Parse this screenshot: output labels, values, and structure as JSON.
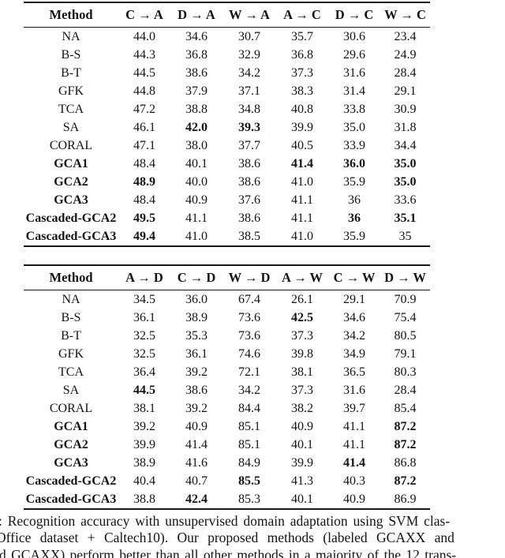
{
  "colors": {
    "background": "#ffffff",
    "text": "#131313",
    "rule": "#161616"
  },
  "table1": {
    "headers": [
      "Method",
      "C → A",
      "D → A",
      "W → A",
      "A → C",
      "D → C",
      "W → C"
    ],
    "rows": [
      {
        "method": "NA",
        "method_bold": false,
        "values": [
          "44.0",
          "34.6",
          "30.7",
          "35.7",
          "30.6",
          "23.4"
        ],
        "bold": [
          false,
          false,
          false,
          false,
          false,
          false
        ]
      },
      {
        "method": "B-S",
        "method_bold": false,
        "values": [
          "44.3",
          "36.8",
          "32.9",
          "36.8",
          "29.6",
          "24.9"
        ],
        "bold": [
          false,
          false,
          false,
          false,
          false,
          false
        ]
      },
      {
        "method": "B-T",
        "method_bold": false,
        "values": [
          "44.5",
          "38.6",
          "34.2",
          "37.3",
          "31.6",
          "28.4"
        ],
        "bold": [
          false,
          false,
          false,
          false,
          false,
          false
        ]
      },
      {
        "method": "GFK",
        "method_bold": false,
        "values": [
          "44.8",
          "37.9",
          "37.1",
          "38.3",
          "31.4",
          "29.1"
        ],
        "bold": [
          false,
          false,
          false,
          false,
          false,
          false
        ]
      },
      {
        "method": "TCA",
        "method_bold": false,
        "values": [
          "47.2",
          "38.8",
          "34.8",
          "40.8",
          "33.8",
          "30.9"
        ],
        "bold": [
          false,
          false,
          false,
          false,
          false,
          false
        ]
      },
      {
        "method": "SA",
        "method_bold": false,
        "values": [
          "46.1",
          "42.0",
          "39.3",
          "39.9",
          "35.0",
          "31.8"
        ],
        "bold": [
          false,
          true,
          true,
          false,
          false,
          false
        ]
      },
      {
        "method": "CORAL",
        "method_bold": false,
        "values": [
          "47.1",
          "38.0",
          "37.7",
          "40.5",
          "33.9",
          "34.4"
        ],
        "bold": [
          false,
          false,
          false,
          false,
          false,
          false
        ]
      },
      {
        "method": "GCA1",
        "method_bold": true,
        "values": [
          "48.4",
          "40.1",
          "38.6",
          "41.4",
          "36.0",
          "35.0"
        ],
        "bold": [
          false,
          false,
          false,
          true,
          true,
          true
        ]
      },
      {
        "method": "GCA2",
        "method_bold": true,
        "values": [
          "48.9",
          "40.0",
          "38.6",
          "41.0",
          "35.9",
          "35.0"
        ],
        "bold": [
          true,
          false,
          false,
          false,
          false,
          true
        ]
      },
      {
        "method": "GCA3",
        "method_bold": true,
        "values": [
          "48.4",
          "40.9",
          "37.6",
          "41.1",
          "36",
          "33.6"
        ],
        "bold": [
          false,
          false,
          false,
          false,
          false,
          false
        ]
      },
      {
        "method": "Cascaded-GCA2",
        "method_bold": true,
        "values": [
          "49.5",
          "41.1",
          "38.6",
          "41.1",
          "36",
          "35.1"
        ],
        "bold": [
          true,
          false,
          false,
          false,
          true,
          true
        ]
      },
      {
        "method": "Cascaded-GCA3",
        "method_bold": true,
        "values": [
          "49.4",
          "41.0",
          "38.5",
          "41.0",
          "35.9",
          "35"
        ],
        "bold": [
          true,
          false,
          false,
          false,
          false,
          false
        ]
      }
    ]
  },
  "table2": {
    "headers": [
      "Method",
      "A → D",
      "C → D",
      "W → D",
      "A → W",
      "C → W",
      "D → W"
    ],
    "rows": [
      {
        "method": "NA",
        "method_bold": false,
        "values": [
          "34.5",
          "36.0",
          "67.4",
          "26.1",
          "29.1",
          "70.9"
        ],
        "bold": [
          false,
          false,
          false,
          false,
          false,
          false
        ]
      },
      {
        "method": "B-S",
        "method_bold": false,
        "values": [
          "36.1",
          "38.9",
          "73.6",
          "42.5",
          "34.6",
          "75.4"
        ],
        "bold": [
          false,
          false,
          false,
          true,
          false,
          false
        ]
      },
      {
        "method": "B-T",
        "method_bold": false,
        "values": [
          "32.5",
          "35.3",
          "73.6",
          "37.3",
          "34.2",
          "80.5"
        ],
        "bold": [
          false,
          false,
          false,
          false,
          false,
          false
        ]
      },
      {
        "method": "GFK",
        "method_bold": false,
        "values": [
          "32.5",
          "36.1",
          "74.6",
          "39.8",
          "34.9",
          "79.1"
        ],
        "bold": [
          false,
          false,
          false,
          false,
          false,
          false
        ]
      },
      {
        "method": "TCA",
        "method_bold": false,
        "values": [
          "36.4",
          "39.2",
          "72.1",
          "38.1",
          "36.5",
          "80.3"
        ],
        "bold": [
          false,
          false,
          false,
          false,
          false,
          false
        ]
      },
      {
        "method": "SA",
        "method_bold": false,
        "values": [
          "44.5",
          "38.6",
          "34.2",
          "37.3",
          "31.6",
          "28.4"
        ],
        "bold": [
          true,
          false,
          false,
          false,
          false,
          false
        ]
      },
      {
        "method": "CORAL",
        "method_bold": false,
        "values": [
          "38.1",
          "39.2",
          "84.4",
          "38.2",
          "39.7",
          "85.4"
        ],
        "bold": [
          false,
          false,
          false,
          false,
          false,
          false
        ]
      },
      {
        "method": "GCA1",
        "method_bold": true,
        "values": [
          "39.2",
          "40.9",
          "85.1",
          "40.9",
          "41.1",
          "87.2"
        ],
        "bold": [
          false,
          false,
          false,
          false,
          false,
          true
        ]
      },
      {
        "method": "GCA2",
        "method_bold": true,
        "values": [
          "39.9",
          "41.4",
          "85.1",
          "40.1",
          "41.1",
          "87.2"
        ],
        "bold": [
          false,
          false,
          false,
          false,
          false,
          true
        ]
      },
      {
        "method": "GCA3",
        "method_bold": true,
        "values": [
          "38.9",
          "41.6",
          "84.9",
          "39.9",
          "41.4",
          "86.8"
        ],
        "bold": [
          false,
          false,
          false,
          false,
          true,
          false
        ]
      },
      {
        "method": "Cascaded-GCA2",
        "method_bold": true,
        "values": [
          "40.4",
          "40.7",
          "85.5",
          "41.3",
          "40.3",
          "87.2"
        ],
        "bold": [
          false,
          false,
          true,
          false,
          false,
          true
        ]
      },
      {
        "method": "Cascaded-GCA3",
        "method_bold": true,
        "values": [
          "38.8",
          "42.4",
          "85.3",
          "40.1",
          "40.9",
          "86.9"
        ],
        "bold": [
          false,
          true,
          false,
          false,
          false,
          false
        ]
      }
    ]
  },
  "caption": {
    "lines": [
      ": Recognition accuracy with unsupervised domain adaptation using SVM clas-",
      "Office dataset + Caltech10). Our proposed methods (labeled GCAXX and",
      "d GCAXX) perform better than all other methods in a majority of the 12 trans-"
    ]
  }
}
